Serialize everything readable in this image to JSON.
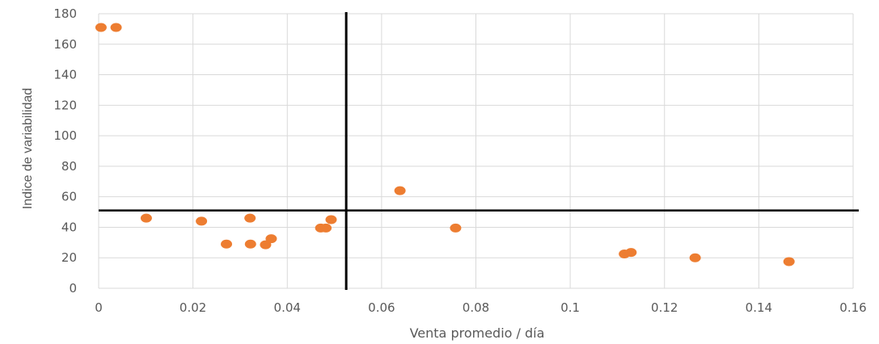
{
  "chart_data": {
    "type": "scatter",
    "title": "",
    "xlabel": "Venta promedio / día",
    "ylabel": "Indice de variabilidad",
    "xlim": [
      0,
      0.16
    ],
    "ylim": [
      0,
      180
    ],
    "xticks": [
      0,
      0.02,
      0.04,
      0.06,
      0.08,
      0.1,
      0.12,
      0.14,
      0.16
    ],
    "xtick_labels": [
      "0",
      "0.02",
      "0.04",
      "0.06",
      "0.08",
      "0.1",
      "0.12",
      "0.14",
      "0.16"
    ],
    "yticks": [
      0,
      20,
      40,
      60,
      80,
      100,
      120,
      140,
      160,
      180
    ],
    "ytick_labels": [
      "0",
      "20",
      "40",
      "60",
      "80",
      "100",
      "120",
      "140",
      "160",
      "180"
    ],
    "grid": true,
    "legend": "none",
    "series": [
      {
        "color": "#ED7D31",
        "points": [
          {
            "x": 0.0005,
            "y": 171
          },
          {
            "x": 0.0037,
            "y": 171
          },
          {
            "x": 0.0101,
            "y": 46
          },
          {
            "x": 0.0218,
            "y": 44
          },
          {
            "x": 0.0271,
            "y": 29
          },
          {
            "x": 0.0321,
            "y": 46
          },
          {
            "x": 0.0322,
            "y": 29
          },
          {
            "x": 0.0354,
            "y": 28.5
          },
          {
            "x": 0.0366,
            "y": 32.5
          },
          {
            "x": 0.0471,
            "y": 39.5
          },
          {
            "x": 0.0482,
            "y": 39.5
          },
          {
            "x": 0.0493,
            "y": 45
          },
          {
            "x": 0.0639,
            "y": 64
          },
          {
            "x": 0.0757,
            "y": 39.5
          },
          {
            "x": 0.1115,
            "y": 22.5
          },
          {
            "x": 0.1129,
            "y": 23.5
          },
          {
            "x": 0.1265,
            "y": 20
          },
          {
            "x": 0.1464,
            "y": 17.5
          }
        ]
      }
    ],
    "reference_lines": {
      "vertical_x": 0.0525,
      "horizontal_y": 51,
      "color": "#000000"
    },
    "colors": {
      "grid": "#D9D9D9",
      "text": "#595959",
      "marker": "#ED7D31"
    }
  }
}
